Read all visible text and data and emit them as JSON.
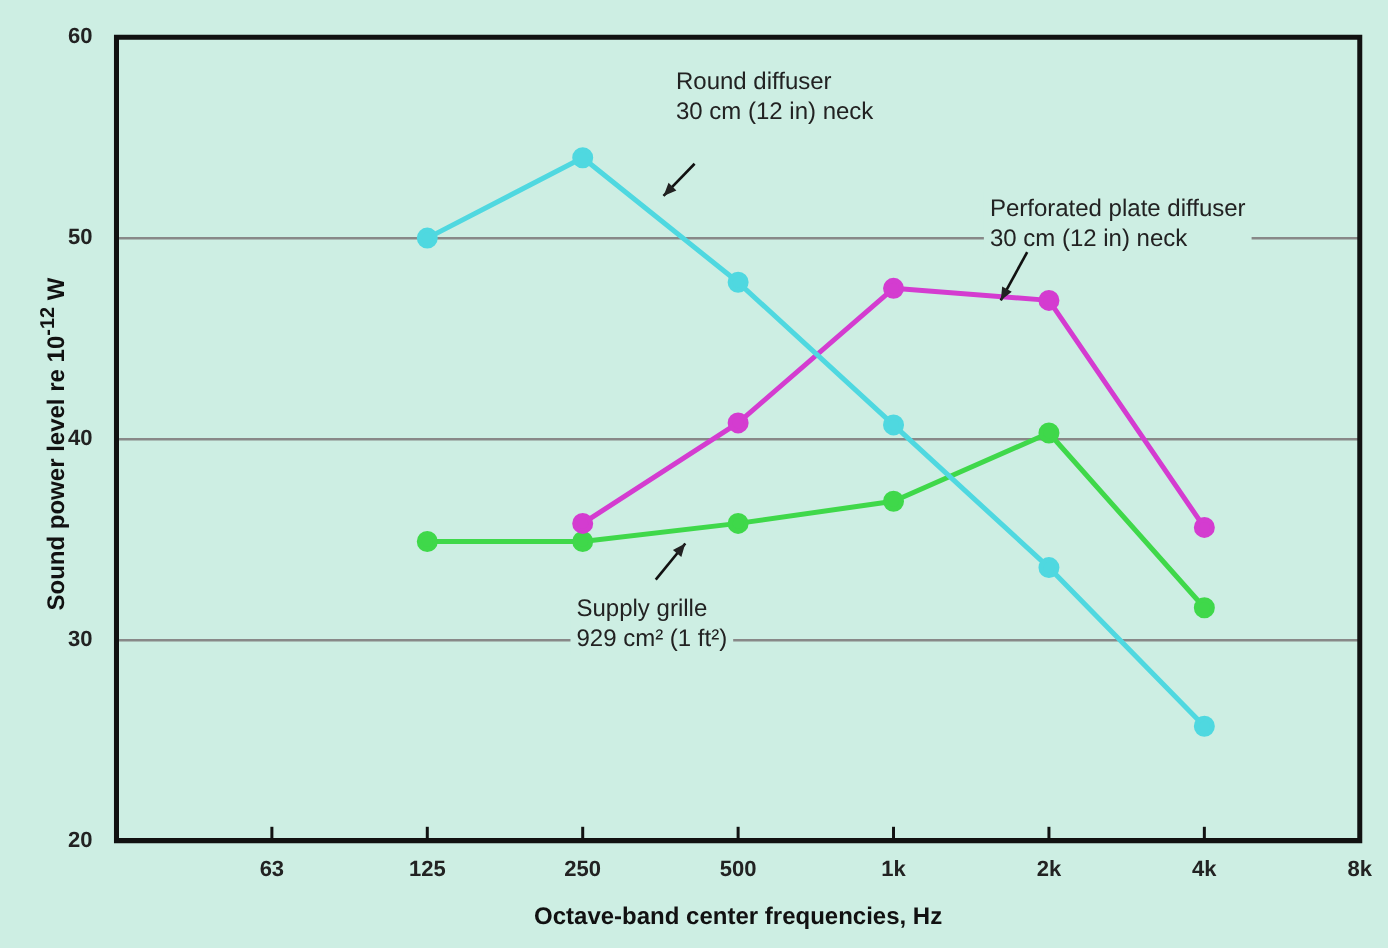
{
  "chart_data": {
    "type": "line",
    "xlabel": "Octave-band center frequencies, Hz",
    "ylabel": "Sound power level  re 10$^{-12}$ W",
    "categories": [
      null,
      "63",
      "125",
      "250",
      "500",
      "1k",
      "2k",
      "4k",
      "8k"
    ],
    "series": [
      {
        "color": "#4fd8e0",
        "values": [
          null,
          null,
          50,
          54,
          47.8,
          40.7,
          33.6,
          25.7,
          null
        ]
      },
      {
        "color": "#d43cd0",
        "values": [
          null,
          null,
          null,
          35.8,
          40.8,
          47.5,
          46.9,
          35.6,
          null
        ]
      },
      {
        "color": "#3fd84a",
        "values": [
          null,
          null,
          34.9,
          34.9,
          35.8,
          36.9,
          40.3,
          31.6,
          null
        ]
      }
    ],
    "ylim": [
      20,
      60
    ],
    "yticks": [
      20,
      30,
      40,
      50,
      60
    ],
    "grid": "y",
    "marker": "circle",
    "line_style": "solid",
    "annotations": [
      "Round diffuser\n30 cm (12 in) neck",
      {
        "text": "Perforated plate diffuser\n30 cm (12 in) neck",
        "x": "2k",
        "y": 46.9
      },
      "Supply grille\n929 cm² (1 ft²)"
    ]
  }
}
